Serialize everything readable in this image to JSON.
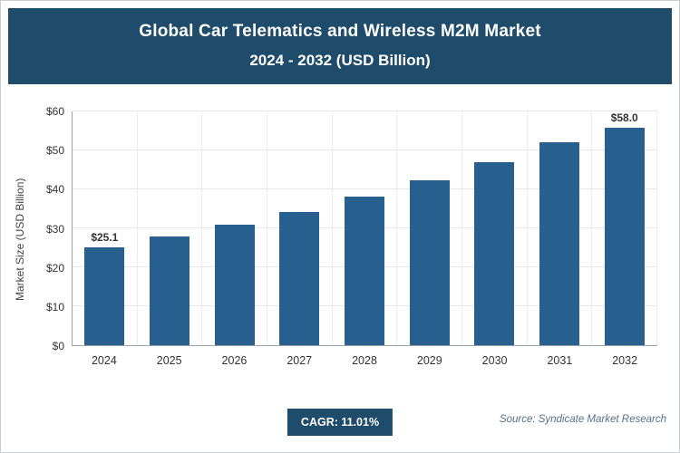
{
  "header": {
    "title_line1": "Global Car Telematics and Wireless M2M Market",
    "title_line2": "2024 - 2032 (USD Billion)"
  },
  "colors": {
    "header_bg": "#1f4c6b",
    "bar": "#27608e",
    "badge_bg": "#1f4c6b"
  },
  "chart_data": {
    "type": "bar",
    "title": "Global Car Telematics and Wireless M2M Market 2024 - 2032 (USD Billion)",
    "xlabel": "",
    "ylabel": "Market Size (USD Billion)",
    "ylim": [
      0,
      60
    ],
    "grid": true,
    "legend_position": "none",
    "yticks": [
      {
        "value": 0,
        "label": "$0"
      },
      {
        "value": 10,
        "label": "$10"
      },
      {
        "value": 20,
        "label": "$20"
      },
      {
        "value": 30,
        "label": "$30"
      },
      {
        "value": 40,
        "label": "$40"
      },
      {
        "value": 50,
        "label": "$50"
      },
      {
        "value": 60,
        "label": "$60"
      }
    ],
    "categories": [
      "2024",
      "2025",
      "2026",
      "2027",
      "2028",
      "2029",
      "2030",
      "2031",
      "2032"
    ],
    "values": [
      25.1,
      27.9,
      31.0,
      34.3,
      38.1,
      42.3,
      47.0,
      52.1,
      58.0
    ],
    "bar_labels": [
      "$25.1",
      "",
      "",
      "",
      "",
      "",
      "",
      "",
      "$58.0"
    ]
  },
  "footer": {
    "cagr_label": "CAGR: 11.01%",
    "source": "Source: Syndicate Market Research"
  }
}
